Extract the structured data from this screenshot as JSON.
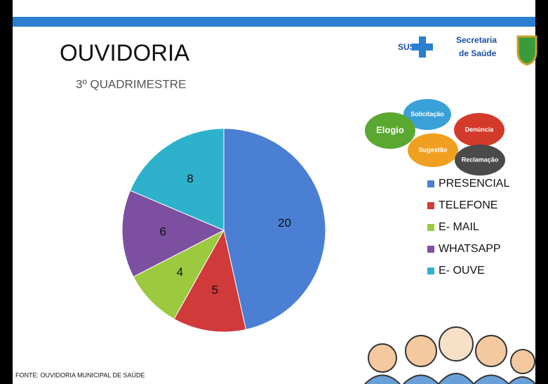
{
  "chart_data": {
    "type": "pie",
    "title": "OUVIDORIA",
    "subtitle": "3º QUADRIMESTRE",
    "categories": [
      "PRESENCIAL",
      "TELEFONE",
      "E- MAIL",
      "WHATSAPP",
      "E- OUVE"
    ],
    "values": [
      20,
      5,
      4,
      6,
      8
    ],
    "colors": [
      "#4a7fd4",
      "#d03a3a",
      "#9bc93f",
      "#7d4fa0",
      "#2eb2cc"
    ],
    "legend": "right",
    "source": "FONTE: OUVIDORIA MUNICIPAL  DE SAÚDE"
  },
  "logo": {
    "sus": "SUS",
    "line1": "Secretaria",
    "line2": "de Saúde"
  },
  "bubbles": [
    "Solicitação",
    "Elogio",
    "Denúncia",
    "Sugestão",
    "Reclamação"
  ]
}
